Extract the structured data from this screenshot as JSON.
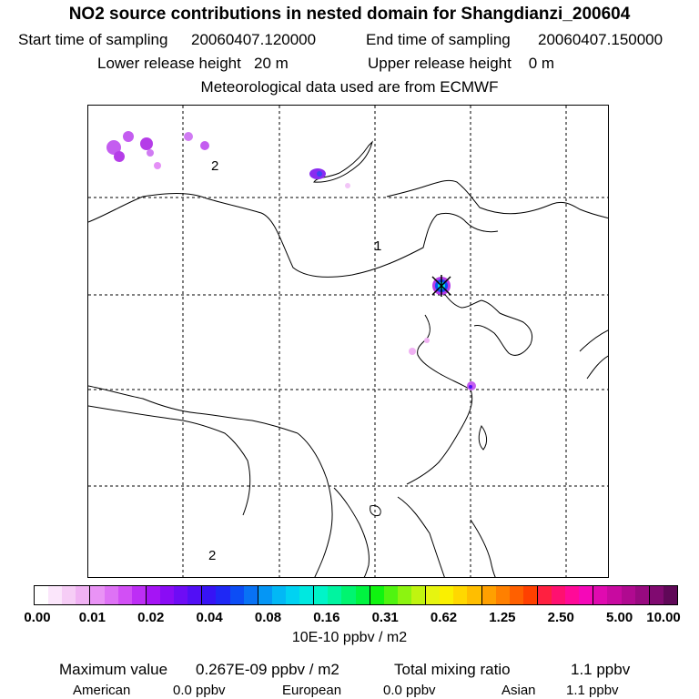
{
  "header": {
    "title": "NO2 source contributions in nested domain for Shangdianzi_200604",
    "start_label": "Start time of sampling",
    "start_value": "20060407.120000",
    "end_label": "End time of sampling",
    "end_value": "20060407.150000",
    "lower_release": "Lower release height   20 m",
    "upper_release": "Upper release height    0 m",
    "met": "Meteorological data used are from ECMWF"
  },
  "map": {
    "domain_label_1": "1",
    "domain_label_2": "2",
    "domain_label_2b": "2",
    "receptor_marker": "Shangdianzi receptor"
  },
  "colorbar": {
    "tick_labels": [
      "0.00",
      "0.01",
      "0.02",
      "0.04",
      "0.08",
      "0.16",
      "0.31",
      "0.62",
      "1.25",
      "2.50",
      "5.00",
      "10.00"
    ],
    "units": "10E-10 ppbv / m2",
    "colors": [
      "#ffffff",
      "#fbe6fb",
      "#f6cdf6",
      "#f0b2f3",
      "#e993f5",
      "#de72f5",
      "#d24ff5",
      "#bd2ef5",
      "#a514f5",
      "#8a0cf5",
      "#6e0cf5",
      "#520ff5",
      "#3713f5",
      "#1f28f5",
      "#0c4df5",
      "#0872f5",
      "#0596f5",
      "#02b8f5",
      "#00d2f2",
      "#00e8e0",
      "#00f4c8",
      "#00f4a0",
      "#00f470",
      "#00f440",
      "#10f410",
      "#50f410",
      "#8cf410",
      "#c0f410",
      "#e6f410",
      "#faf000",
      "#ffd800",
      "#ffbe00",
      "#ffa000",
      "#ff8000",
      "#ff6000",
      "#ff4000",
      "#ff2040",
      "#ff1070",
      "#ff0a98",
      "#f508b8",
      "#e00ab0",
      "#c80aa0",
      "#b00a90",
      "#980a80",
      "#800a70",
      "#600858"
    ]
  },
  "summary": {
    "max_label": "Maximum value",
    "max_value": "0.267E-09 ppbv / m2",
    "total_label": "Total mixing ratio",
    "total_value": "1.1 ppbv",
    "american_label": "American",
    "american_value": "0.0 ppbv",
    "european_label": "European",
    "european_value": "0.0 ppbv",
    "asian_label": "Asian",
    "asian_value": "1.1 ppbv"
  }
}
